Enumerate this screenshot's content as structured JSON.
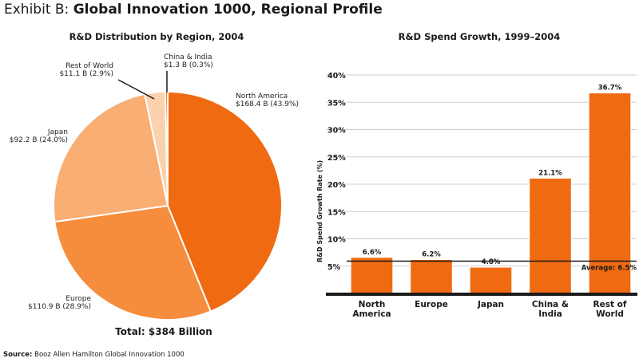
{
  "exhibit": {
    "lead": "Exhibit B:",
    "title": "Global Innovation 1000, Regional Profile"
  },
  "source": {
    "label": "Source:",
    "text": "Booz Allen Hamilton Global Innovation 1000"
  },
  "chart_data": [
    {
      "type": "pie",
      "title": "R&D Distribution by Region, 2004",
      "total_label": "Total: $384 Billion",
      "slices": [
        {
          "name": "North America",
          "value": 168.4,
          "percent": 43.9,
          "label": "$168.4 B (43.9%)",
          "color": "#f06a12"
        },
        {
          "name": "Europe",
          "value": 110.9,
          "percent": 28.9,
          "label": "$110.9 B (28.9%)",
          "color": "#f68d3c"
        },
        {
          "name": "Japan",
          "value": 92.2,
          "percent": 24.0,
          "label": "$92.2 B (24.0%)",
          "color": "#f9ae73"
        },
        {
          "name": "Rest of World",
          "value": 11.1,
          "percent": 2.9,
          "label": "$11.1 B (2.9%)",
          "color": "#fcd1ad"
        },
        {
          "name": "China & India",
          "value": 1.3,
          "percent": 0.3,
          "label": "$1.3 B (0.3%)",
          "color": "#f06a12"
        }
      ]
    },
    {
      "type": "bar",
      "title": "R&D Spend Growth, 1999–2004",
      "ylabel": "R&D Spend Growth Rate (%)",
      "ylim": [
        0,
        40
      ],
      "yticks": [
        "5%",
        "10%",
        "15%",
        "20%",
        "25%",
        "30%",
        "35%",
        "40%"
      ],
      "categories": [
        [
          "North",
          "America"
        ],
        [
          "Europe"
        ],
        [
          "Japan"
        ],
        [
          "China &",
          "India"
        ],
        [
          "Rest of",
          "World"
        ]
      ],
      "values": [
        6.6,
        6.2,
        4.8,
        21.1,
        36.7
      ],
      "value_labels": [
        "6.6%",
        "6.2%",
        "4.8%",
        "21.1%",
        "36.7%"
      ],
      "average": {
        "value": 6.5,
        "label": "Average: 6.5%"
      },
      "color": "#f06a12"
    }
  ]
}
